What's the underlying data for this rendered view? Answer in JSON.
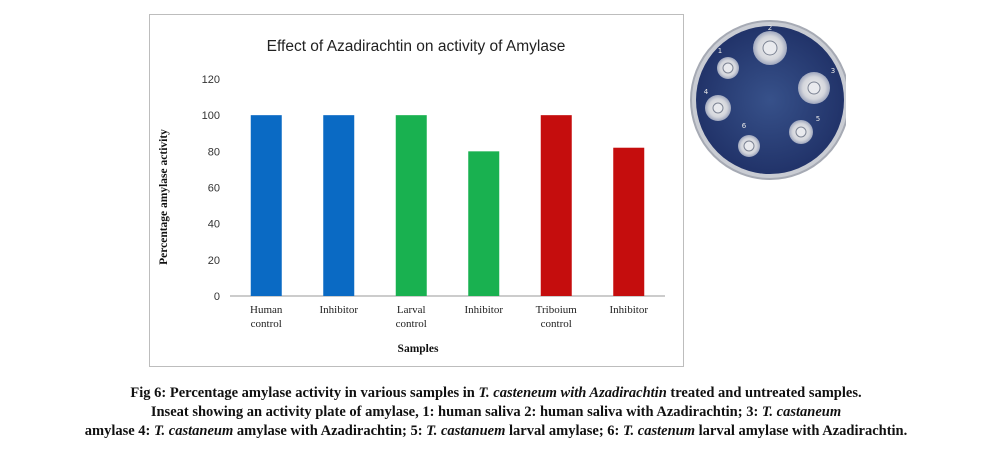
{
  "chart_data": {
    "type": "bar",
    "title": "Effect of Azadirachtin on activity of Amylase",
    "xlabel": "Samples",
    "ylabel": "Percentage  amylase activity",
    "categories": [
      [
        "Human",
        "control"
      ],
      [
        "Inhibitor"
      ],
      [
        "Larval",
        "control"
      ],
      [
        "Inhibitor"
      ],
      [
        "Triboium",
        "control"
      ],
      [
        "Inhibitor"
      ]
    ],
    "values": [
      100,
      100,
      100,
      80,
      100,
      82
    ],
    "colors": [
      "#0a6ac4",
      "#0a6ac4",
      "#19b150",
      "#19b150",
      "#c50d0d",
      "#c50d0d"
    ],
    "ylim": [
      0,
      120
    ],
    "yticks": [
      0,
      20,
      40,
      60,
      80,
      100,
      120
    ],
    "grid": false,
    "legend": "none"
  },
  "inset": {
    "plate_labels": [
      "1",
      "2",
      "3",
      "4",
      "5",
      "6"
    ]
  },
  "caption": {
    "line1": [
      {
        "t": "Fig 6:    Percentage amylase activity in various samples in ",
        "i": false
      },
      {
        "t": "T. casteneum with Azadirachtin",
        "i": true
      },
      {
        "t": " treated and untreated samples.",
        "i": false
      }
    ],
    "line2": [
      {
        "t": "Inseat showing an activity plate of amylase, 1: human saliva 2: human saliva with Azadirachtin; 3: ",
        "i": false
      },
      {
        "t": "T. castaneum",
        "i": true
      }
    ],
    "line3": [
      {
        "t": "amylase 4: ",
        "i": false
      },
      {
        "t": "T. castaneum",
        "i": true
      },
      {
        "t": " amylase with Azadirachtin; 5: ",
        "i": false
      },
      {
        "t": "T. castanuem",
        "i": true
      },
      {
        "t": " larval amylase; 6: ",
        "i": false
      },
      {
        "t": "T. castenum",
        "i": true
      },
      {
        "t": " larval amylase with Azadirachtin.",
        "i": false
      }
    ]
  }
}
